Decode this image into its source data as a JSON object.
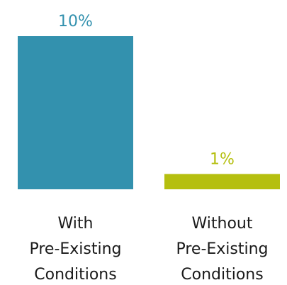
{
  "chart_data": {
    "type": "bar",
    "categories": [
      [
        "With",
        "Pre-Existing",
        "Conditions"
      ],
      [
        "Without",
        "Pre-Existing",
        "Conditions"
      ]
    ],
    "values": [
      10,
      1
    ],
    "value_labels": [
      "10%",
      "1%"
    ],
    "colors": [
      "#3391ae",
      "#b5bf0f"
    ],
    "ylim": [
      0,
      10
    ],
    "grid": false,
    "legend": "none"
  }
}
